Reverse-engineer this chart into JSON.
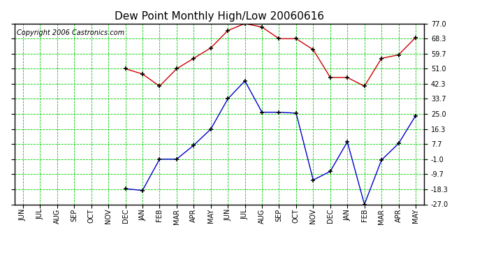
{
  "title": "Dew Point Monthly High/Low 20060616",
  "copyright": "Copyright 2006 Castronics.com",
  "x_labels": [
    "JUN",
    "JUL",
    "AUG",
    "SEP",
    "OCT",
    "NOV",
    "DEC",
    "JAN",
    "FEB",
    "MAR",
    "APR",
    "MAY",
    "JUN",
    "JUL",
    "AUG",
    "SEP",
    "OCT",
    "NOV",
    "DEC",
    "JAN",
    "FEB",
    "MAR",
    "APR",
    "MAY"
  ],
  "y_ticks": [
    77.0,
    68.3,
    59.7,
    51.0,
    42.3,
    33.7,
    25.0,
    16.3,
    7.7,
    -1.0,
    -9.7,
    -18.3,
    -27.0
  ],
  "high_values": [
    null,
    null,
    null,
    null,
    null,
    null,
    51.0,
    48.0,
    41.0,
    51.0,
    57.0,
    63.0,
    73.0,
    77.0,
    75.0,
    68.3,
    68.3,
    62.0,
    46.0,
    46.0,
    41.0,
    57.0,
    59.0,
    69.0
  ],
  "low_values": [
    null,
    null,
    null,
    null,
    null,
    null,
    -18.0,
    -19.0,
    -1.0,
    -1.0,
    7.0,
    16.3,
    33.7,
    44.0,
    26.0,
    26.0,
    25.5,
    -13.0,
    -8.0,
    9.0,
    -27.0,
    -1.5,
    8.0,
    24.0
  ],
  "high_color": "#cc0000",
  "low_color": "#0000cc",
  "bg_color": "#ffffff",
  "grid_color": "#00cc00",
  "title_fontsize": 11,
  "copyright_fontsize": 7,
  "tick_fontsize": 7,
  "ylim": [
    -27.0,
    77.0
  ]
}
